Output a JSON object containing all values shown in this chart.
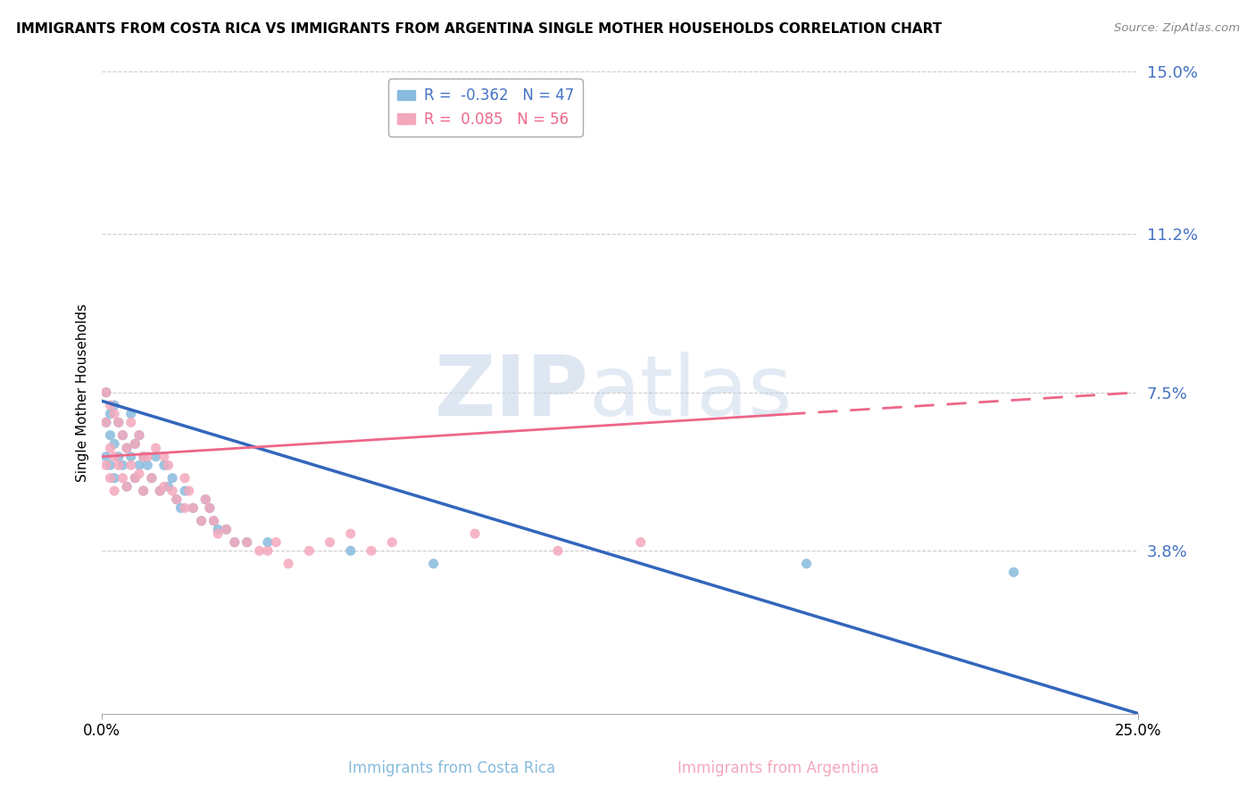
{
  "title": "IMMIGRANTS FROM COSTA RICA VS IMMIGRANTS FROM ARGENTINA SINGLE MOTHER HOUSEHOLDS CORRELATION CHART",
  "source": "Source: ZipAtlas.com",
  "xlabel_blue": "Immigrants from Costa Rica",
  "xlabel_pink": "Immigrants from Argentina",
  "ylabel": "Single Mother Households",
  "blue_R": -0.362,
  "blue_N": 47,
  "pink_R": 0.085,
  "pink_N": 56,
  "blue_color": "#88bbdd",
  "pink_color": "#f4a8bc",
  "blue_line_color": "#3366bb",
  "pink_line_color": "#ee6688",
  "xlim": [
    0.0,
    0.25
  ],
  "ylim": [
    0.0,
    0.15
  ],
  "yticks": [
    0.038,
    0.075,
    0.112,
    0.15
  ],
  "ytick_labels": [
    "3.8%",
    "7.5%",
    "11.2%",
    "15.0%"
  ],
  "xticks": [
    0.0,
    0.25
  ],
  "xtick_labels": [
    "0.0%",
    "25.0%"
  ],
  "watermark_zip": "ZIP",
  "watermark_atlas": "atlas",
  "blue_line_y_start": 0.073,
  "blue_line_y_end": 0.0,
  "pink_line_y_start": 0.06,
  "pink_line_y_end": 0.075,
  "blue_scatter_x": [
    0.001,
    0.001,
    0.001,
    0.002,
    0.002,
    0.002,
    0.003,
    0.003,
    0.003,
    0.004,
    0.004,
    0.005,
    0.005,
    0.006,
    0.006,
    0.007,
    0.007,
    0.008,
    0.008,
    0.009,
    0.009,
    0.01,
    0.01,
    0.011,
    0.012,
    0.013,
    0.014,
    0.015,
    0.016,
    0.017,
    0.018,
    0.019,
    0.02,
    0.022,
    0.024,
    0.025,
    0.026,
    0.027,
    0.028,
    0.03,
    0.032,
    0.035,
    0.04,
    0.06,
    0.08,
    0.17,
    0.22
  ],
  "blue_scatter_y": [
    0.075,
    0.068,
    0.06,
    0.07,
    0.065,
    0.058,
    0.072,
    0.063,
    0.055,
    0.068,
    0.06,
    0.065,
    0.058,
    0.062,
    0.053,
    0.07,
    0.06,
    0.063,
    0.055,
    0.065,
    0.058,
    0.06,
    0.052,
    0.058,
    0.055,
    0.06,
    0.052,
    0.058,
    0.053,
    0.055,
    0.05,
    0.048,
    0.052,
    0.048,
    0.045,
    0.05,
    0.048,
    0.045,
    0.043,
    0.043,
    0.04,
    0.04,
    0.04,
    0.038,
    0.035,
    0.035,
    0.033
  ],
  "pink_scatter_x": [
    0.001,
    0.001,
    0.001,
    0.002,
    0.002,
    0.002,
    0.003,
    0.003,
    0.003,
    0.004,
    0.004,
    0.005,
    0.005,
    0.006,
    0.006,
    0.007,
    0.007,
    0.008,
    0.008,
    0.009,
    0.009,
    0.01,
    0.01,
    0.011,
    0.012,
    0.013,
    0.014,
    0.015,
    0.015,
    0.016,
    0.017,
    0.018,
    0.02,
    0.02,
    0.021,
    0.022,
    0.024,
    0.025,
    0.026,
    0.027,
    0.028,
    0.03,
    0.032,
    0.035,
    0.038,
    0.04,
    0.042,
    0.045,
    0.05,
    0.055,
    0.06,
    0.065,
    0.07,
    0.09,
    0.11,
    0.13
  ],
  "pink_scatter_y": [
    0.075,
    0.068,
    0.058,
    0.072,
    0.062,
    0.055,
    0.07,
    0.06,
    0.052,
    0.068,
    0.058,
    0.065,
    0.055,
    0.062,
    0.053,
    0.068,
    0.058,
    0.063,
    0.055,
    0.065,
    0.056,
    0.06,
    0.052,
    0.06,
    0.055,
    0.062,
    0.052,
    0.06,
    0.053,
    0.058,
    0.052,
    0.05,
    0.055,
    0.048,
    0.052,
    0.048,
    0.045,
    0.05,
    0.048,
    0.045,
    0.042,
    0.043,
    0.04,
    0.04,
    0.038,
    0.038,
    0.04,
    0.035,
    0.038,
    0.04,
    0.042,
    0.038,
    0.04,
    0.042,
    0.038,
    0.04
  ]
}
